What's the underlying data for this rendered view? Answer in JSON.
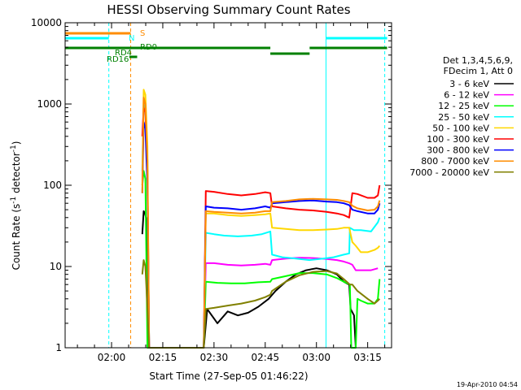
{
  "chart_data": {
    "type": "line",
    "title": "HESSI Observing Summary Count Rates",
    "xlabel": "Start Time (27-Sep-05 01:46:22)",
    "ylabel_main": "Count Rate (s",
    "ylabel_sup1": "-1",
    "ylabel_mid": " detector",
    "ylabel_sup2": "-1",
    "ylabel_end": ")",
    "yscale": "log",
    "xlim_minutes": [
      106.4,
      202
    ],
    "ylim": [
      1,
      10000
    ],
    "x_ticks": [
      {
        "label": "02:00",
        "minute": 120
      },
      {
        "label": "02:15",
        "minute": 135
      },
      {
        "label": "02:30",
        "minute": 150
      },
      {
        "label": "02:45",
        "minute": 165
      },
      {
        "label": "03:00",
        "minute": 180
      },
      {
        "label": "03:15",
        "minute": 195
      }
    ],
    "y_ticks": [
      {
        "label": "1",
        "value": 1
      },
      {
        "label": "10",
        "value": 10
      },
      {
        "label": "100",
        "value": 100
      },
      {
        "label": "1000",
        "value": 1000
      },
      {
        "label": "10000",
        "value": 10000
      }
    ],
    "legend_header": [
      "Det 1,3,4,5,6,9,",
      "FDecim 1, Att 0"
    ],
    "series": [
      {
        "name": "3 - 6 keV",
        "color": "#000000",
        "points": [
          [
            129,
            25
          ],
          [
            129.4,
            48
          ],
          [
            129.8,
            45
          ],
          [
            130.2,
            38
          ],
          [
            130.8,
            1
          ],
          [
            147,
            1
          ],
          [
            148,
            3
          ],
          [
            151,
            2
          ],
          [
            154,
            2.8
          ],
          [
            157,
            2.5
          ],
          [
            160,
            2.7
          ],
          [
            163,
            3.2
          ],
          [
            166,
            4
          ],
          [
            168,
            5
          ],
          [
            171,
            6.5
          ],
          [
            174,
            8
          ],
          [
            177,
            9
          ],
          [
            180,
            9.5
          ],
          [
            183,
            9
          ],
          [
            186,
            8
          ],
          [
            188,
            6.5
          ],
          [
            189.5,
            6
          ],
          [
            189.6,
            6
          ],
          [
            190,
            3
          ],
          [
            191,
            2.5
          ],
          [
            191.5,
            1
          ]
        ]
      },
      {
        "name": "6 - 12 keV",
        "color": "#ff00ff",
        "points": [
          [
            147,
            1
          ],
          [
            147.6,
            11
          ],
          [
            150,
            11
          ],
          [
            154,
            10.5
          ],
          [
            158,
            10.3
          ],
          [
            162,
            10.5
          ],
          [
            165,
            10.8
          ],
          [
            166.5,
            10.5
          ],
          [
            167,
            12
          ],
          [
            171,
            12.5
          ],
          [
            175,
            12.8
          ],
          [
            179,
            12.7
          ],
          [
            183,
            12.4
          ],
          [
            186,
            12
          ],
          [
            188,
            11.5
          ],
          [
            189.5,
            11
          ],
          [
            190.5,
            10.5
          ],
          [
            191.5,
            9
          ],
          [
            194,
            9
          ],
          [
            196,
            9
          ],
          [
            198,
            9.5
          ]
        ]
      },
      {
        "name": "12 - 25 keV",
        "color": "#00ff00",
        "points": [
          [
            129,
            100
          ],
          [
            129.4,
            150
          ],
          [
            129.9,
            120
          ],
          [
            130.5,
            1
          ],
          [
            147,
            1
          ],
          [
            147.6,
            6.5
          ],
          [
            151,
            6.3
          ],
          [
            155,
            6.2
          ],
          [
            159,
            6.2
          ],
          [
            163,
            6.4
          ],
          [
            166.5,
            6.5
          ],
          [
            167,
            7
          ],
          [
            171,
            7.6
          ],
          [
            175,
            8.3
          ],
          [
            179,
            8.3
          ],
          [
            183,
            8
          ],
          [
            186,
            7.2
          ],
          [
            188,
            6.5
          ],
          [
            189.8,
            6
          ],
          [
            190.2,
            1
          ],
          [
            191.5,
            1
          ],
          [
            192,
            4
          ],
          [
            193,
            3.8
          ],
          [
            195,
            3.5
          ],
          [
            197,
            3.5
          ],
          [
            198,
            4
          ],
          [
            198.5,
            7
          ]
        ]
      },
      {
        "name": "25 - 50 keV",
        "color": "#00ffff",
        "points": [
          [
            129,
            150
          ],
          [
            129.4,
            1000
          ],
          [
            129.9,
            900
          ],
          [
            130.5,
            200
          ],
          [
            131,
            1
          ],
          [
            147,
            1
          ],
          [
            147.6,
            26
          ],
          [
            150,
            25
          ],
          [
            153,
            24
          ],
          [
            157,
            23.5
          ],
          [
            161,
            24
          ],
          [
            164,
            25
          ],
          [
            166.5,
            27
          ],
          [
            167,
            14
          ],
          [
            170,
            13
          ],
          [
            174,
            12.5
          ],
          [
            178,
            12
          ],
          [
            182,
            12.5
          ],
          [
            185,
            13
          ],
          [
            188,
            14
          ],
          [
            189.6,
            14.5
          ],
          [
            189.8,
            30
          ],
          [
            191,
            28
          ],
          [
            193,
            28
          ],
          [
            196,
            27
          ],
          [
            198,
            35
          ],
          [
            198.5,
            40
          ]
        ]
      },
      {
        "name": "50 - 100 keV",
        "color": "#ffd700",
        "points": [
          [
            129,
            100
          ],
          [
            129.4,
            1500
          ],
          [
            129.9,
            1300
          ],
          [
            130.5,
            300
          ],
          [
            131,
            1
          ],
          [
            147,
            1
          ],
          [
            147.6,
            45
          ],
          [
            150,
            45
          ],
          [
            154,
            43
          ],
          [
            158,
            42
          ],
          [
            162,
            43
          ],
          [
            165,
            44
          ],
          [
            166.5,
            45
          ],
          [
            167,
            30
          ],
          [
            171,
            29
          ],
          [
            175,
            28
          ],
          [
            179,
            28
          ],
          [
            183,
            28.5
          ],
          [
            186,
            29
          ],
          [
            188,
            30
          ],
          [
            189.6,
            30
          ],
          [
            190.5,
            20
          ],
          [
            191.5,
            18
          ],
          [
            193,
            15
          ],
          [
            195,
            15
          ],
          [
            197,
            16
          ],
          [
            198,
            17
          ],
          [
            198.5,
            18
          ]
        ]
      },
      {
        "name": "100 - 300 keV",
        "color": "#ff0000",
        "points": [
          [
            129,
            400
          ],
          [
            129.4,
            900
          ],
          [
            129.9,
            800
          ],
          [
            130.5,
            150
          ],
          [
            131,
            1
          ],
          [
            147,
            1
          ],
          [
            147.6,
            85
          ],
          [
            150,
            83
          ],
          [
            154,
            78
          ],
          [
            158,
            75
          ],
          [
            162,
            78
          ],
          [
            165,
            82
          ],
          [
            166.5,
            80
          ],
          [
            167,
            55
          ],
          [
            171,
            52
          ],
          [
            175,
            50
          ],
          [
            179,
            49
          ],
          [
            183,
            47
          ],
          [
            186,
            45
          ],
          [
            188,
            43
          ],
          [
            189.6,
            40
          ],
          [
            190.5,
            80
          ],
          [
            192,
            78
          ],
          [
            195,
            70
          ],
          [
            197,
            70
          ],
          [
            198,
            75
          ],
          [
            198.5,
            100
          ]
        ]
      },
      {
        "name": "300 - 800 keV",
        "color": "#0000ff",
        "points": [
          [
            129,
            80
          ],
          [
            129.4,
            600
          ],
          [
            129.9,
            500
          ],
          [
            130.5,
            100
          ],
          [
            131,
            1
          ],
          [
            147,
            1
          ],
          [
            147.6,
            55
          ],
          [
            150,
            53
          ],
          [
            154,
            52
          ],
          [
            158,
            50
          ],
          [
            162,
            52
          ],
          [
            165,
            55
          ],
          [
            166.5,
            53
          ],
          [
            167,
            60
          ],
          [
            171,
            62
          ],
          [
            175,
            64
          ],
          [
            179,
            65
          ],
          [
            183,
            63
          ],
          [
            186,
            62
          ],
          [
            188,
            60
          ],
          [
            189.6,
            57
          ],
          [
            190.5,
            50
          ],
          [
            192,
            48
          ],
          [
            195,
            45
          ],
          [
            197,
            45
          ],
          [
            198,
            50
          ],
          [
            198.5,
            60
          ]
        ]
      },
      {
        "name": "800 - 7000 keV",
        "color": "#ff8c00",
        "points": [
          [
            129,
            80
          ],
          [
            129.4,
            1200
          ],
          [
            129.9,
            1000
          ],
          [
            130.5,
            200
          ],
          [
            131,
            1
          ],
          [
            147,
            1
          ],
          [
            147.6,
            48
          ],
          [
            150,
            47
          ],
          [
            154,
            46
          ],
          [
            158,
            45
          ],
          [
            162,
            46
          ],
          [
            165,
            48
          ],
          [
            166.5,
            48
          ],
          [
            167,
            62
          ],
          [
            171,
            64
          ],
          [
            175,
            67
          ],
          [
            179,
            68
          ],
          [
            183,
            67
          ],
          [
            186,
            66
          ],
          [
            188,
            64
          ],
          [
            189.6,
            62
          ],
          [
            190.5,
            56
          ],
          [
            192,
            52
          ],
          [
            195,
            49
          ],
          [
            197,
            50
          ],
          [
            198,
            55
          ],
          [
            198.5,
            65
          ]
        ]
      },
      {
        "name": "7000 - 20000 keV",
        "color": "#808000",
        "points": [
          [
            129,
            8
          ],
          [
            129.4,
            12
          ],
          [
            129.9,
            10
          ],
          [
            130.5,
            3
          ],
          [
            131,
            1
          ],
          [
            147,
            1
          ],
          [
            147.6,
            3
          ],
          [
            150,
            3.1
          ],
          [
            154,
            3.3
          ],
          [
            158,
            3.5
          ],
          [
            162,
            3.8
          ],
          [
            165,
            4.2
          ],
          [
            166.5,
            4.5
          ],
          [
            167,
            5
          ],
          [
            171,
            6.5
          ],
          [
            175,
            7.8
          ],
          [
            179,
            8.6
          ],
          [
            183,
            8.8
          ],
          [
            186,
            8.2
          ],
          [
            188,
            7
          ],
          [
            189.8,
            6
          ],
          [
            190.5,
            6
          ],
          [
            192,
            5
          ],
          [
            195,
            4
          ],
          [
            197,
            3.5
          ],
          [
            198,
            3.8
          ],
          [
            198.5,
            4
          ]
        ]
      }
    ],
    "annotations": [
      {
        "label": "S",
        "color": "#ff8c00"
      },
      {
        "label": "N",
        "color": "#00ffff"
      },
      {
        "label": "RD0",
        "color": "#008000"
      },
      {
        "label": "RD4",
        "color": "#008000"
      },
      {
        "label": "RD16",
        "color": "#008000"
      }
    ],
    "date_stamp": "19-Apr-2010 04:54"
  }
}
